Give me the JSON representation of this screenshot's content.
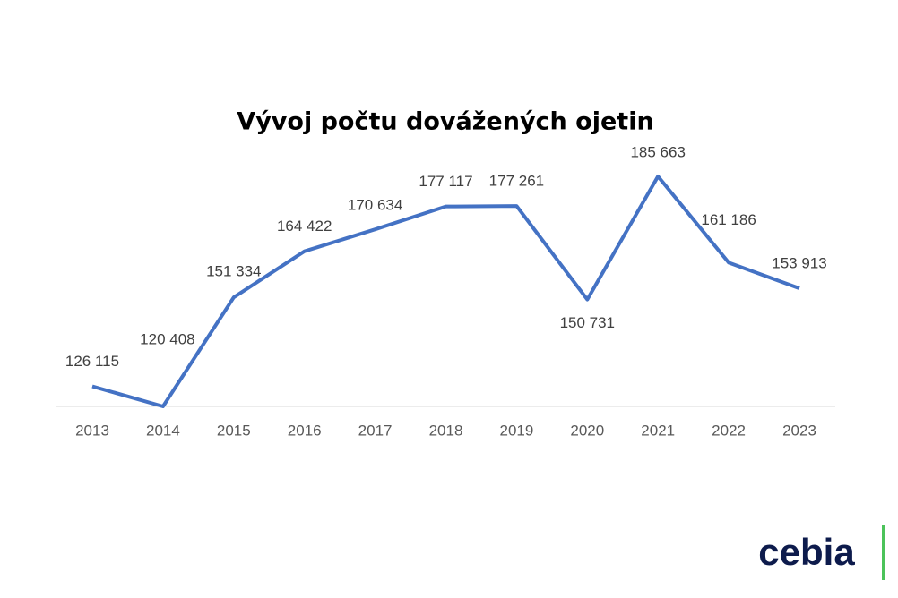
{
  "chart_data": {
    "type": "line",
    "title": "Vývoj počtu dovážených ojetin",
    "categories": [
      "2013",
      "2014",
      "2015",
      "2016",
      "2017",
      "2018",
      "2019",
      "2020",
      "2021",
      "2022",
      "2023"
    ],
    "values": [
      126115,
      120408,
      151334,
      164422,
      170634,
      177117,
      177261,
      150731,
      185663,
      161186,
      153913
    ],
    "value_labels": [
      "126 115",
      "120 408",
      "151 334",
      "164 422",
      "170 634",
      "177 117",
      "177 261",
      "150 731",
      "185 663",
      "161 186",
      "153 913"
    ],
    "color": "#4472c4"
  },
  "logo": {
    "text": "cebia"
  }
}
